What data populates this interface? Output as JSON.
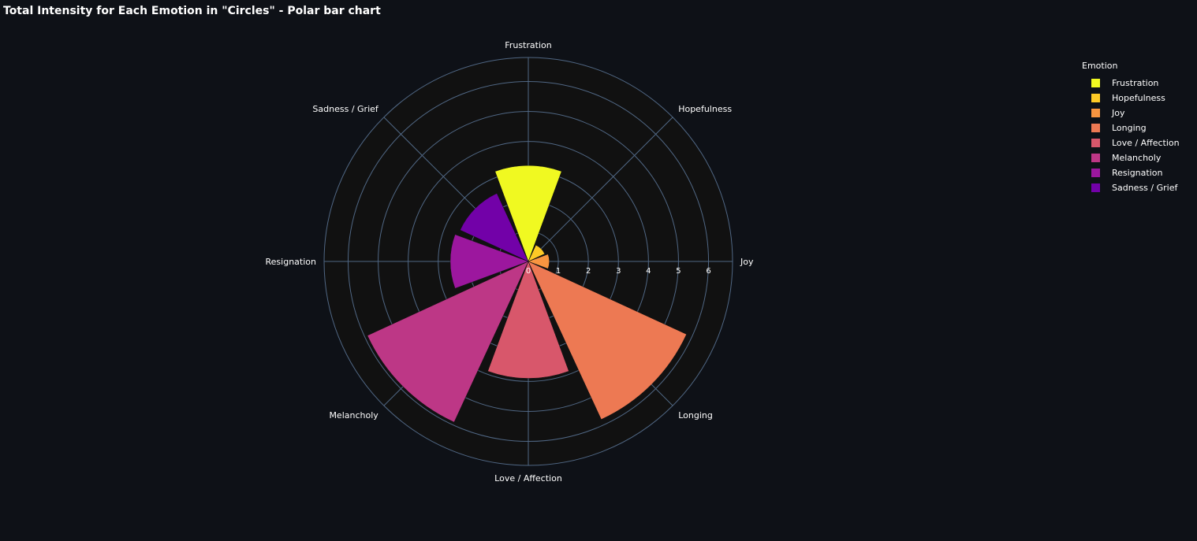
{
  "title": "Total Intensity for Each Emotion in \"Circles\" - Polar bar chart",
  "chart_data": {
    "type": "bar",
    "subtype": "polar",
    "title": "Total Intensity for Each Emotion in \"Circles\" - Polar bar chart",
    "categories": [
      "Joy",
      "Hopefulness",
      "Frustration",
      "Sadness / Grief",
      "Resignation",
      "Melancholy",
      "Love / Affection",
      "Longing"
    ],
    "angles_deg": [
      0,
      45,
      90,
      135,
      180,
      225,
      270,
      315
    ],
    "values": [
      0.7,
      0.6,
      3.2,
      2.5,
      2.6,
      5.9,
      3.9,
      5.8
    ],
    "colors": [
      "#f89540",
      "#fdca26",
      "#f0f921",
      "#7201a8",
      "#9c179e",
      "#bd3786",
      "#d8576b",
      "#ed7953"
    ],
    "radial_range": [
      0,
      6.8
    ],
    "radial_ticks": [
      0,
      1,
      2,
      3,
      4,
      5,
      6
    ],
    "grid": true,
    "legend": {
      "title": "Emotion",
      "placement": "top-right",
      "items": [
        {
          "name": "Frustration",
          "color": "#f0f921"
        },
        {
          "name": "Hopefulness",
          "color": "#fdca26"
        },
        {
          "name": "Joy",
          "color": "#f89540"
        },
        {
          "name": "Longing",
          "color": "#ed7953"
        },
        {
          "name": "Love / Affection",
          "color": "#d8576b"
        },
        {
          "name": "Melancholy",
          "color": "#bd3786"
        },
        {
          "name": "Resignation",
          "color": "#9c179e"
        },
        {
          "name": "Sadness / Grief",
          "color": "#7201a8"
        }
      ]
    }
  }
}
